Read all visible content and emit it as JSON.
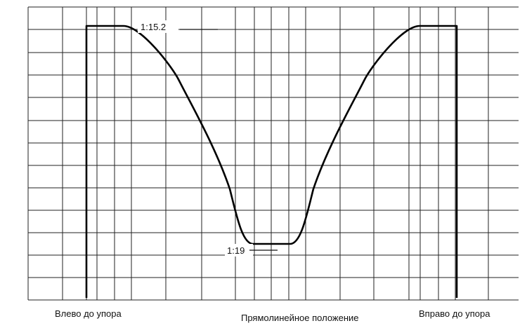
{
  "chart_data": {
    "type": "line",
    "title": "",
    "x_labels": [
      "Влево до упора",
      "Прямолинейное положение",
      "Вправо до упора"
    ],
    "annotations": [
      {
        "label": "1:15.2",
        "refers_to": "max_ratio"
      },
      {
        "label": "1:19",
        "refers_to": "min_ratio"
      }
    ],
    "series": [
      {
        "points": [
          {
            "x": 0.0,
            "y": 0.0
          },
          {
            "x": 0.0,
            "y": 1.0
          },
          {
            "x": 0.08,
            "y": 1.0
          },
          {
            "x": 0.2,
            "y": 0.75
          },
          {
            "x": 0.31,
            "y": 0.25
          },
          {
            "x": 0.36,
            "y": 0.0
          },
          {
            "x": 0.44,
            "y": 0.0
          },
          {
            "x": 0.49,
            "y": 0.25
          },
          {
            "x": 0.6,
            "y": 0.75
          },
          {
            "x": 0.72,
            "y": 1.0
          },
          {
            "x": 0.8,
            "y": 1.0
          },
          {
            "x": 0.8,
            "y": 0.0
          }
        ]
      }
    ],
    "colors": {
      "grid": "#222222",
      "curve": "#000000",
      "background": "#ffffff"
    },
    "grid": true
  }
}
